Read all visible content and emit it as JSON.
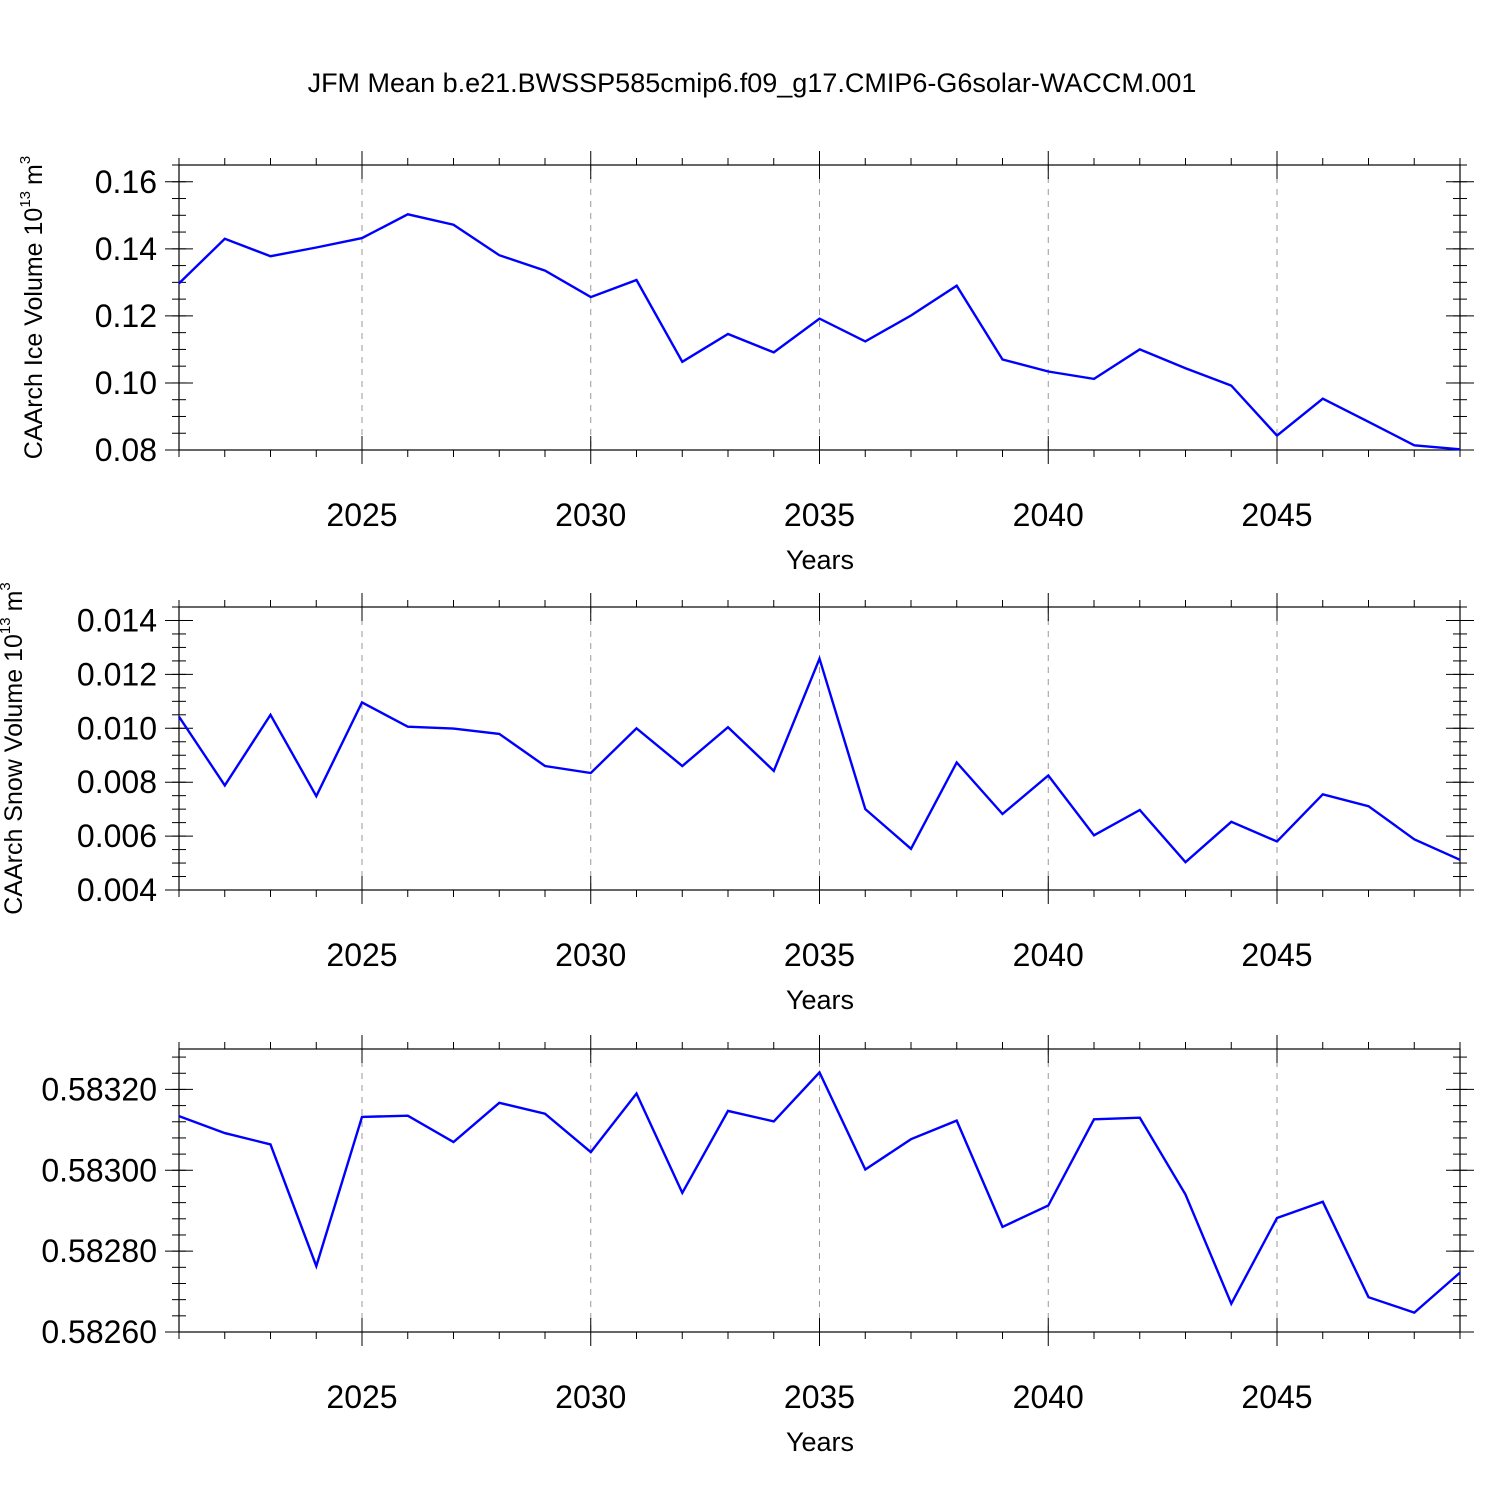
{
  "title": "JFM Mean b.e21.BWSSP585cmip6.f09_g17.CMIP6-G6solar-WACCM.001",
  "colors": {
    "line": "#0000ff",
    "axis": "#000000",
    "grid": "#999999"
  },
  "chart_data": [
    {
      "type": "line",
      "ylabel_main": "CAArch Ice Volume 10",
      "ylabel_exp": "13",
      "ylabel_unit": "m",
      "ylabel_unit_exp": "3",
      "xlabel": "Years",
      "xlim": [
        2021,
        2049
      ],
      "ylim": [
        0.08,
        0.165
      ],
      "xticks": [
        2025,
        2030,
        2035,
        2040,
        2045
      ],
      "xtick_labels": [
        "2025",
        "2030",
        "2035",
        "2040",
        "2045"
      ],
      "yticks": [
        0.08,
        0.1,
        0.12,
        0.14,
        0.16
      ],
      "ytick_labels": [
        "0.08",
        "0.10",
        "0.12",
        "0.14",
        "0.16"
      ],
      "ytick_minor_step": 0.005,
      "x": [
        2021,
        2022,
        2023,
        2024,
        2025,
        2026,
        2027,
        2028,
        2029,
        2030,
        2031,
        2032,
        2033,
        2034,
        2035,
        2036,
        2037,
        2038,
        2039,
        2040,
        2041,
        2042,
        2043,
        2044,
        2045,
        2046,
        2047,
        2048,
        2049
      ],
      "series": [
        {
          "values": [
            0.1297,
            0.143,
            0.1378,
            0.1404,
            0.1432,
            0.1503,
            0.1472,
            0.1381,
            0.1335,
            0.1256,
            0.1307,
            0.1063,
            0.1146,
            0.1091,
            0.1192,
            0.1124,
            0.1201,
            0.129,
            0.107,
            0.1034,
            0.1012,
            0.11,
            0.1044,
            0.0992,
            0.0843,
            0.0953,
            0.0884,
            0.0814,
            0.0802
          ]
        }
      ],
      "grid": "vertical dashed"
    },
    {
      "type": "line",
      "ylabel_main": "CAArch Snow Volume 10",
      "ylabel_exp": "13",
      "ylabel_unit": "m",
      "ylabel_unit_exp": "3",
      "xlabel": "Years",
      "xlim": [
        2021,
        2049
      ],
      "ylim": [
        0.004,
        0.0145
      ],
      "xticks": [
        2025,
        2030,
        2035,
        2040,
        2045
      ],
      "xtick_labels": [
        "2025",
        "2030",
        "2035",
        "2040",
        "2045"
      ],
      "yticks": [
        0.004,
        0.006,
        0.008,
        0.01,
        0.012,
        0.014
      ],
      "ytick_labels": [
        "0.004",
        "0.006",
        "0.008",
        "0.010",
        "0.012",
        "0.014"
      ],
      "ytick_minor_step": 0.0005,
      "x": [
        2021,
        2022,
        2023,
        2024,
        2025,
        2026,
        2027,
        2028,
        2029,
        2030,
        2031,
        2032,
        2033,
        2034,
        2035,
        2036,
        2037,
        2038,
        2039,
        2040,
        2041,
        2042,
        2043,
        2044,
        2045,
        2046,
        2047,
        2048,
        2049
      ],
      "series": [
        {
          "values": [
            0.01043,
            0.00788,
            0.0105,
            0.00748,
            0.01096,
            0.01006,
            0.00999,
            0.00979,
            0.0086,
            0.00834,
            0.01,
            0.0086,
            0.01004,
            0.00842,
            0.01258,
            0.007,
            0.00553,
            0.00873,
            0.00682,
            0.00825,
            0.00603,
            0.00697,
            0.00503,
            0.00653,
            0.0058,
            0.00755,
            0.00711,
            0.00588,
            0.00512
          ]
        }
      ],
      "grid": "vertical dashed"
    },
    {
      "type": "line",
      "ylabel_main": "",
      "xlabel": "Years",
      "xlim": [
        2021,
        2049
      ],
      "ylim": [
        0.5826,
        0.5833
      ],
      "xticks": [
        2025,
        2030,
        2035,
        2040,
        2045
      ],
      "xtick_labels": [
        "2025",
        "2030",
        "2035",
        "2040",
        "2045"
      ],
      "yticks": [
        0.5826,
        0.5828,
        0.583,
        0.5832
      ],
      "ytick_labels": [
        "0.58260",
        "0.58280",
        "0.58300",
        "0.58320"
      ],
      "ytick_minor_step": 4e-05,
      "x": [
        2021,
        2022,
        2023,
        2024,
        2025,
        2026,
        2027,
        2028,
        2029,
        2030,
        2031,
        2032,
        2033,
        2034,
        2035,
        2036,
        2037,
        2038,
        2039,
        2040,
        2041,
        2042,
        2043,
        2044,
        2045,
        2046,
        2047,
        2048,
        2049
      ],
      "series": [
        {
          "values": [
            0.583134,
            0.583092,
            0.583064,
            0.582763,
            0.583132,
            0.583135,
            0.58307,
            0.583167,
            0.58314,
            0.583045,
            0.58319,
            0.582944,
            0.583147,
            0.583121,
            0.583242,
            0.583002,
            0.583077,
            0.583123,
            0.58286,
            0.582913,
            0.583126,
            0.58313,
            0.58294,
            0.58267,
            0.582882,
            0.582922,
            0.582686,
            0.582648,
            0.582747
          ]
        }
      ],
      "grid": "vertical dashed"
    }
  ]
}
